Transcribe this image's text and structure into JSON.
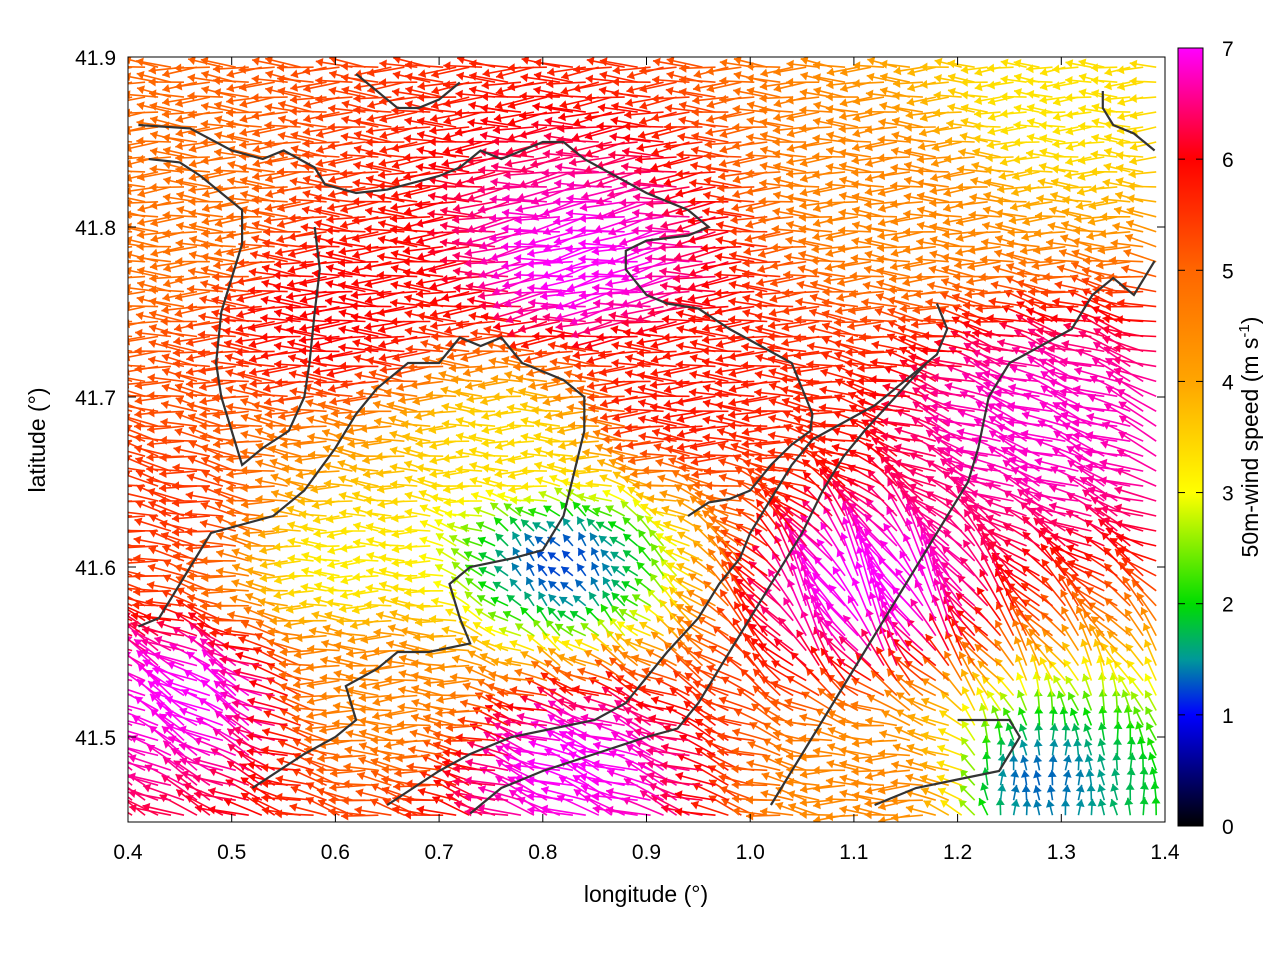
{
  "chart_data": {
    "type": "vector-field",
    "xlabel": "longitude (°)",
    "ylabel": "latitude (°)",
    "xlim": [
      0.4,
      1.4
    ],
    "ylim": [
      41.45,
      41.9
    ],
    "x_ticks": [
      0.4,
      0.5,
      0.6,
      0.7,
      0.8,
      0.9,
      1.0,
      1.1,
      1.2,
      1.3,
      1.4
    ],
    "x_tick_labels": [
      "0.4",
      "0.5",
      "0.6",
      "0.7",
      "0.8",
      "0.9",
      "1.0",
      "1.1",
      "1.2",
      "1.3",
      "1.4"
    ],
    "y_ticks": [
      41.5,
      41.6,
      41.7,
      41.8,
      41.9
    ],
    "y_tick_labels": [
      "41.5",
      "41.6",
      "41.7",
      "41.8",
      "41.9"
    ],
    "colorbar": {
      "label_main": "50m-wind speed (m s",
      "label_sup": "-1",
      "label_close": ")",
      "range": [
        0,
        7
      ],
      "ticks": [
        0,
        1,
        2,
        3,
        4,
        5,
        6,
        7
      ],
      "tick_labels": [
        "0",
        "1",
        "2",
        "3",
        "4",
        "5",
        "6",
        "7"
      ],
      "palette_stops": [
        {
          "value": 0.0,
          "color": "#000000"
        },
        {
          "value": 1.0,
          "color": "#0000ff"
        },
        {
          "value": 1.5,
          "color": "#009999"
        },
        {
          "value": 2.0,
          "color": "#00dd00"
        },
        {
          "value": 3.0,
          "color": "#ffff00"
        },
        {
          "value": 4.0,
          "color": "#ffa500"
        },
        {
          "value": 5.0,
          "color": "#ff6600"
        },
        {
          "value": 6.0,
          "color": "#ff0000"
        },
        {
          "value": 7.0,
          "color": "#ff00ff"
        }
      ]
    },
    "coastline_color": "#333333",
    "grid": false,
    "field_regions": [
      {
        "region": "magenta core north",
        "center": [
          0.86,
          41.78
        ],
        "speed": 7.0,
        "direction_deg": 190
      },
      {
        "region": "red band north-west",
        "center": [
          0.62,
          41.75
        ],
        "speed": 6.0,
        "direction_deg": 180
      },
      {
        "region": "orange west margin",
        "center": [
          0.45,
          41.8
        ],
        "speed": 4.8,
        "direction_deg": 180
      },
      {
        "region": "orange east north",
        "center": [
          1.15,
          41.82
        ],
        "speed": 4.5,
        "direction_deg": 180
      },
      {
        "region": "yellow east north",
        "center": [
          1.3,
          41.87
        ],
        "speed": 3.3,
        "direction_deg": 180
      },
      {
        "region": "red central",
        "center": [
          0.95,
          41.7
        ],
        "speed": 5.8,
        "direction_deg": 180
      },
      {
        "region": "magenta south-east",
        "center": [
          1.12,
          41.58
        ],
        "speed": 7.0,
        "direction_deg": 120
      },
      {
        "region": "magenta east",
        "center": [
          1.3,
          41.68
        ],
        "speed": 6.8,
        "direction_deg": 160
      },
      {
        "region": "magenta south",
        "center": [
          0.85,
          41.48
        ],
        "speed": 7.0,
        "direction_deg": 160
      },
      {
        "region": "calm valley",
        "center": [
          0.82,
          41.6
        ],
        "speed": 1.2,
        "direction_deg": 130
      },
      {
        "region": "calm east",
        "center": [
          1.27,
          41.47
        ],
        "speed": 1.3,
        "direction_deg": 90
      },
      {
        "region": "magenta south-west",
        "center": [
          0.48,
          41.52
        ],
        "speed": 7.0,
        "direction_deg": 150
      },
      {
        "region": "red south-west",
        "center": [
          0.45,
          41.63
        ],
        "speed": 5.5,
        "direction_deg": 170
      },
      {
        "region": "yellow south-central",
        "center": [
          0.62,
          41.6
        ],
        "speed": 3.2,
        "direction_deg": 180
      },
      {
        "region": "orange south",
        "center": [
          0.65,
          41.53
        ],
        "speed": 4.5,
        "direction_deg": 180
      },
      {
        "region": "yellow central",
        "center": [
          0.78,
          41.67
        ],
        "speed": 3.4,
        "direction_deg": 180
      },
      {
        "region": "orange south-east",
        "center": [
          1.15,
          41.47
        ],
        "speed": 4.5,
        "direction_deg": 180
      }
    ],
    "coastlines": [
      [
        [
          0.41,
          41.86
        ],
        [
          0.46,
          41.858
        ],
        [
          0.5,
          41.845
        ],
        [
          0.53,
          41.84
        ],
        [
          0.55,
          41.845
        ],
        [
          0.58,
          41.835
        ],
        [
          0.59,
          41.825
        ],
        [
          0.62,
          41.82
        ],
        [
          0.65,
          41.822
        ],
        [
          0.7,
          41.83
        ],
        [
          0.72,
          41.835
        ],
        [
          0.74,
          41.845
        ],
        [
          0.76,
          41.84
        ],
        [
          0.8,
          41.85
        ],
        [
          0.82,
          41.85
        ],
        [
          0.84,
          41.84
        ],
        [
          0.87,
          41.83
        ],
        [
          0.9,
          41.82
        ],
        [
          0.92,
          41.815
        ],
        [
          0.94,
          41.81
        ],
        [
          0.96,
          41.8
        ],
        [
          0.94,
          41.795
        ],
        [
          0.9,
          41.792
        ],
        [
          0.88,
          41.786
        ],
        [
          0.88,
          41.775
        ],
        [
          0.9,
          41.76
        ],
        [
          0.92,
          41.755
        ],
        [
          0.95,
          41.752
        ],
        [
          0.98,
          41.74
        ],
        [
          1.01,
          41.73
        ],
        [
          1.04,
          41.72
        ],
        [
          1.05,
          41.705
        ],
        [
          1.06,
          41.69
        ],
        [
          1.058,
          41.68
        ],
        [
          1.04,
          41.672
        ],
        [
          1.02,
          41.66
        ],
        [
          1.0,
          41.645
        ],
        [
          0.98,
          41.64
        ],
        [
          0.96,
          41.638
        ],
        [
          0.94,
          41.63
        ]
      ],
      [
        [
          0.42,
          41.84
        ],
        [
          0.45,
          41.838
        ],
        [
          0.47,
          41.83
        ],
        [
          0.49,
          41.82
        ],
        [
          0.51,
          41.81
        ],
        [
          0.51,
          41.79
        ],
        [
          0.5,
          41.77
        ],
        [
          0.49,
          41.75
        ],
        [
          0.485,
          41.72
        ],
        [
          0.49,
          41.7
        ],
        [
          0.5,
          41.68
        ],
        [
          0.51,
          41.66
        ],
        [
          0.53,
          41.67
        ],
        [
          0.555,
          41.68
        ],
        [
          0.57,
          41.7
        ],
        [
          0.575,
          41.72
        ],
        [
          0.58,
          41.75
        ],
        [
          0.585,
          41.775
        ],
        [
          0.58,
          41.8
        ]
      ],
      [
        [
          0.52,
          41.47
        ],
        [
          0.57,
          41.49
        ],
        [
          0.6,
          41.5
        ],
        [
          0.62,
          41.51
        ],
        [
          0.61,
          41.53
        ],
        [
          0.64,
          41.54
        ],
        [
          0.66,
          41.55
        ],
        [
          0.69,
          41.55
        ],
        [
          0.73,
          41.555
        ],
        [
          0.72,
          41.57
        ],
        [
          0.71,
          41.59
        ],
        [
          0.73,
          41.6
        ],
        [
          0.77,
          41.605
        ],
        [
          0.8,
          41.61
        ],
        [
          0.82,
          41.63
        ],
        [
          0.83,
          41.655
        ],
        [
          0.84,
          41.68
        ],
        [
          0.84,
          41.7
        ],
        [
          0.82,
          41.71
        ],
        [
          0.78,
          41.72
        ],
        [
          0.76,
          41.735
        ],
        [
          0.74,
          41.73
        ],
        [
          0.72,
          41.735
        ],
        [
          0.7,
          41.72
        ],
        [
          0.67,
          41.72
        ],
        [
          0.64,
          41.705
        ],
        [
          0.62,
          41.69
        ],
        [
          0.6,
          41.67
        ],
        [
          0.57,
          41.645
        ],
        [
          0.54,
          41.63
        ],
        [
          0.51,
          41.625
        ],
        [
          0.48,
          41.62
        ],
        [
          0.46,
          41.6
        ],
        [
          0.44,
          41.58
        ],
        [
          0.43,
          41.57
        ],
        [
          0.41,
          41.565
        ]
      ],
      [
        [
          0.65,
          41.46
        ],
        [
          0.7,
          41.48
        ],
        [
          0.73,
          41.49
        ],
        [
          0.77,
          41.5
        ],
        [
          0.81,
          41.505
        ],
        [
          0.85,
          41.51
        ],
        [
          0.88,
          41.52
        ],
        [
          0.9,
          41.535
        ],
        [
          0.92,
          41.55
        ],
        [
          0.95,
          41.57
        ],
        [
          0.97,
          41.59
        ],
        [
          0.99,
          41.605
        ],
        [
          1.0,
          41.62
        ],
        [
          1.02,
          41.64
        ],
        [
          1.04,
          41.66
        ],
        [
          1.06,
          41.675
        ],
        [
          1.09,
          41.685
        ],
        [
          1.12,
          41.695
        ],
        [
          1.15,
          41.71
        ],
        [
          1.18,
          41.725
        ],
        [
          1.19,
          41.74
        ],
        [
          1.18,
          41.755
        ]
      ],
      [
        [
          0.73,
          41.455
        ],
        [
          0.76,
          41.47
        ],
        [
          0.8,
          41.48
        ],
        [
          0.85,
          41.49
        ],
        [
          0.9,
          41.5
        ],
        [
          0.93,
          41.505
        ],
        [
          0.95,
          41.52
        ],
        [
          0.97,
          41.54
        ],
        [
          0.99,
          41.56
        ],
        [
          1.01,
          41.58
        ],
        [
          1.03,
          41.6
        ],
        [
          1.05,
          41.62
        ],
        [
          1.07,
          41.645
        ],
        [
          1.09,
          41.665
        ],
        [
          1.11,
          41.68
        ],
        [
          1.14,
          41.7
        ],
        [
          1.17,
          41.72
        ]
      ],
      [
        [
          1.02,
          41.46
        ],
        [
          1.05,
          41.49
        ],
        [
          1.08,
          41.52
        ],
        [
          1.11,
          41.55
        ],
        [
          1.14,
          41.58
        ],
        [
          1.17,
          41.61
        ],
        [
          1.19,
          41.63
        ],
        [
          1.21,
          41.65
        ],
        [
          1.22,
          41.67
        ],
        [
          1.23,
          41.7
        ],
        [
          1.25,
          41.72
        ],
        [
          1.28,
          41.73
        ],
        [
          1.31,
          41.74
        ],
        [
          1.33,
          41.76
        ],
        [
          1.35,
          41.77
        ],
        [
          1.37,
          41.76
        ],
        [
          1.39,
          41.78
        ]
      ],
      [
        [
          1.12,
          41.46
        ],
        [
          1.16,
          41.47
        ],
        [
          1.2,
          41.475
        ],
        [
          1.24,
          41.48
        ],
        [
          1.25,
          41.49
        ],
        [
          1.26,
          41.5
        ],
        [
          1.25,
          41.51
        ],
        [
          1.22,
          41.51
        ],
        [
          1.2,
          41.51
        ]
      ],
      [
        [
          1.34,
          41.88
        ],
        [
          1.34,
          41.87
        ],
        [
          1.35,
          41.86
        ],
        [
          1.37,
          41.855
        ],
        [
          1.39,
          41.845
        ]
      ],
      [
        [
          0.62,
          41.89
        ],
        [
          0.64,
          41.88
        ],
        [
          0.66,
          41.87
        ],
        [
          0.68,
          41.87
        ],
        [
          0.7,
          41.875
        ],
        [
          0.72,
          41.885
        ]
      ]
    ]
  }
}
